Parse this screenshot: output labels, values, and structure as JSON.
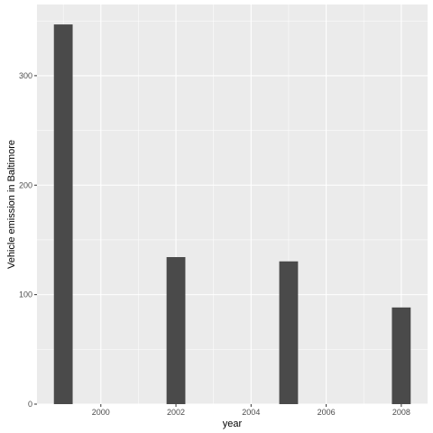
{
  "chart_data": {
    "type": "bar",
    "title": "",
    "xlabel": "year",
    "ylabel": "Vehicle emission in Baltimore",
    "categories": [
      1999,
      2002,
      2005,
      2008
    ],
    "values": [
      346.8,
      134.3,
      130.4,
      88.3
    ],
    "xlim": [
      1998.3,
      2008.7
    ],
    "ylim": [
      0,
      365
    ],
    "x_ticks": [
      2000,
      2002,
      2004,
      2006,
      2008
    ],
    "y_ticks": [
      0,
      100,
      200,
      300
    ],
    "bar_width_years": 0.5,
    "grid": true,
    "legend": "none",
    "colors": {
      "panel": "#ebebeb",
      "grid_major": "#ffffff",
      "bar": "#4a4a4a"
    }
  }
}
